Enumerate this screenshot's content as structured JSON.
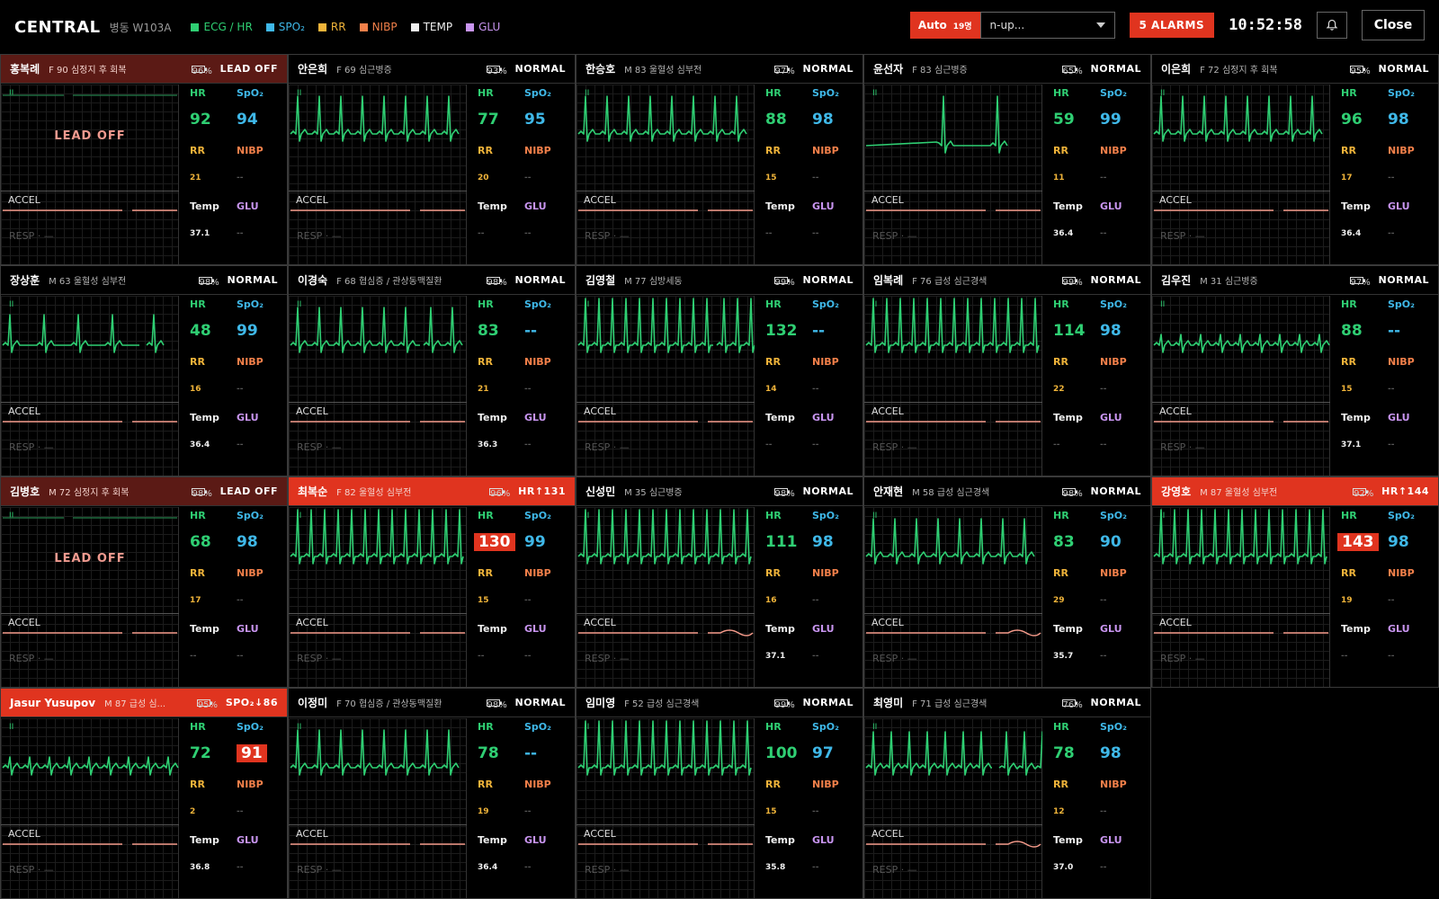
{
  "topbar": {
    "brand": "CENTRAL",
    "ward": "병동 W103A",
    "legend": [
      {
        "label": "ECG / HR",
        "color": "#2fcf73"
      },
      {
        "label": "SPO₂",
        "color": "#3fb8e8"
      },
      {
        "label": "RR",
        "color": "#f0b43a"
      },
      {
        "label": "NIBP",
        "color": "#f2804a"
      },
      {
        "label": "TEMP",
        "color": "#f0f0f0"
      },
      {
        "label": "GLU",
        "color": "#c895f0"
      }
    ],
    "auto_label": "Auto",
    "auto_count": "19명",
    "layout_select": "n-up...",
    "alarms": "5 ALARMS",
    "clock": "10:52:58",
    "close": "Close"
  },
  "labels": {
    "hr": "HR",
    "spo2": "SpO₂",
    "rr": "RR",
    "nibp": "NIBP",
    "temp": "Temp",
    "glu": "GLU",
    "lead": "II",
    "accel": "ACCEL",
    "resp": "RESP · —",
    "lead_off": "LEAD OFF"
  },
  "colors": {
    "ecg": "#2fcf73",
    "accel": "#f49a8a",
    "alarm": "#e0341f",
    "lead_off": "#5b1a15"
  },
  "patients": [
    {
      "name": "홍복례",
      "info": "F 90 심정지 후 회복",
      "battery": 96,
      "status": "LEAD OFF",
      "state": "leadoff",
      "hr": "92",
      "spo2": "94",
      "rr": "21",
      "nibp": "--",
      "temp": "37.1",
      "glu": "--",
      "ecg": "off",
      "accel_wave": false
    },
    {
      "name": "안은희",
      "info": "F 69 심근병증",
      "battery": 93,
      "status": "NORMAL",
      "state": "normal",
      "hr": "77",
      "spo2": "95",
      "rr": "20",
      "nibp": "--",
      "temp": "--",
      "glu": "--",
      "ecg": "normal",
      "accel_wave": false
    },
    {
      "name": "한승호",
      "info": "M 83 울혈성 심부전",
      "battery": 97,
      "status": "NORMAL",
      "state": "normal",
      "hr": "88",
      "spo2": "98",
      "rr": "15",
      "nibp": "--",
      "temp": "--",
      "glu": "--",
      "ecg": "normal",
      "accel_wave": false
    },
    {
      "name": "윤선자",
      "info": "F 83 심근병증",
      "battery": 65,
      "status": "NORMAL",
      "state": "normal",
      "hr": "59",
      "spo2": "99",
      "rr": "11",
      "nibp": "--",
      "temp": "36.4",
      "glu": "--",
      "ecg": "brady",
      "accel_wave": false
    },
    {
      "name": "이은희",
      "info": "F 72 심정지 후 회복",
      "battery": 95,
      "status": "NORMAL",
      "state": "normal",
      "hr": "96",
      "spo2": "98",
      "rr": "17",
      "nibp": "--",
      "temp": "36.4",
      "glu": "--",
      "ecg": "normal",
      "accel_wave": false
    },
    {
      "name": "장상훈",
      "info": "M 63 울혈성 심부전",
      "battery": 98,
      "status": "NORMAL",
      "state": "normal",
      "hr": "48",
      "spo2": "99",
      "rr": "16",
      "nibp": "--",
      "temp": "36.4",
      "glu": "--",
      "ecg": "sparse",
      "accel_wave": false
    },
    {
      "name": "이경숙",
      "info": "F 68 협심증 / 관상동맥질환",
      "battery": 98,
      "status": "NORMAL",
      "state": "normal",
      "hr": "83",
      "spo2": "--",
      "rr": "21",
      "nibp": "--",
      "temp": "36.3",
      "glu": "--",
      "ecg": "normal",
      "accel_wave": false
    },
    {
      "name": "김영철",
      "info": "M 77 심방세동",
      "battery": 99,
      "status": "NORMAL",
      "state": "normal",
      "hr": "132",
      "spo2": "--",
      "rr": "14",
      "nibp": "--",
      "temp": "--",
      "glu": "--",
      "ecg": "fast",
      "accel_wave": false
    },
    {
      "name": "임복례",
      "info": "F 76 급성 심근경색",
      "battery": 99,
      "status": "NORMAL",
      "state": "normal",
      "hr": "114",
      "spo2": "98",
      "rr": "22",
      "nibp": "--",
      "temp": "--",
      "glu": "--",
      "ecg": "fast",
      "accel_wave": false
    },
    {
      "name": "김우진",
      "info": "M 31 심근병증",
      "battery": 97,
      "status": "NORMAL",
      "state": "normal",
      "hr": "88",
      "spo2": "--",
      "rr": "15",
      "nibp": "--",
      "temp": "37.1",
      "glu": "--",
      "ecg": "small",
      "accel_wave": false
    },
    {
      "name": "김병호",
      "info": "M 72 심정지 후 회복",
      "battery": 98,
      "status": "LEAD OFF",
      "state": "leadoff",
      "hr": "68",
      "spo2": "98",
      "rr": "17",
      "nibp": "--",
      "temp": "--",
      "glu": "--",
      "ecg": "off",
      "accel_wave": false
    },
    {
      "name": "최복순",
      "info": "F 82 울혈성 심부전",
      "battery": 96,
      "status": "HR↑131",
      "state": "alarm",
      "hr": "130",
      "spo2": "99",
      "rr": "15",
      "nibp": "--",
      "temp": "--",
      "glu": "--",
      "ecg": "fast",
      "accel_wave": false,
      "hr_alarm": true
    },
    {
      "name": "신성민",
      "info": "M 35 심근병증",
      "battery": 98,
      "status": "NORMAL",
      "state": "normal",
      "hr": "111",
      "spo2": "98",
      "rr": "16",
      "nibp": "--",
      "temp": "37.1",
      "glu": "--",
      "ecg": "fast",
      "accel_wave": true
    },
    {
      "name": "안재현",
      "info": "M 58 급성 심근경색",
      "battery": 98,
      "status": "NORMAL",
      "state": "normal",
      "hr": "83",
      "spo2": "90",
      "rr": "29",
      "nibp": "--",
      "temp": "35.7",
      "glu": "--",
      "ecg": "normal",
      "accel_wave": true
    },
    {
      "name": "강영호",
      "info": "M 87 울혈성 심부전",
      "battery": 92,
      "status": "HR↑144",
      "state": "alarm",
      "hr": "143",
      "spo2": "98",
      "rr": "19",
      "nibp": "--",
      "temp": "--",
      "glu": "--",
      "ecg": "fast",
      "accel_wave": false,
      "hr_alarm": true
    },
    {
      "name": "Jasur Yusupov",
      "info": "M 87 급성 심...",
      "battery": 95,
      "status": "SPO₂↓86",
      "state": "alarm",
      "hr": "72",
      "spo2": "91",
      "rr": "2",
      "nibp": "--",
      "temp": "36.8",
      "glu": "--",
      "ecg": "small",
      "accel_wave": false,
      "spo2_alarm": true
    },
    {
      "name": "이정미",
      "info": "F 70 협심증 / 관상동맥질환",
      "battery": 98,
      "status": "NORMAL",
      "state": "normal",
      "hr": "78",
      "spo2": "--",
      "rr": "19",
      "nibp": "--",
      "temp": "36.4",
      "glu": "--",
      "ecg": "normal",
      "accel_wave": false
    },
    {
      "name": "임미영",
      "info": "F 52 급성 심근경색",
      "battery": 99,
      "status": "NORMAL",
      "state": "normal",
      "hr": "100",
      "spo2": "97",
      "rr": "15",
      "nibp": "--",
      "temp": "35.8",
      "glu": "--",
      "ecg": "fast",
      "accel_wave": false
    },
    {
      "name": "최영미",
      "info": "F 71 급성 심근경색",
      "battery": 76,
      "status": "NORMAL",
      "state": "normal",
      "hr": "78",
      "spo2": "98",
      "rr": "12",
      "nibp": "--",
      "temp": "37.0",
      "glu": "--",
      "ecg": "noisy",
      "accel_wave": true
    }
  ]
}
